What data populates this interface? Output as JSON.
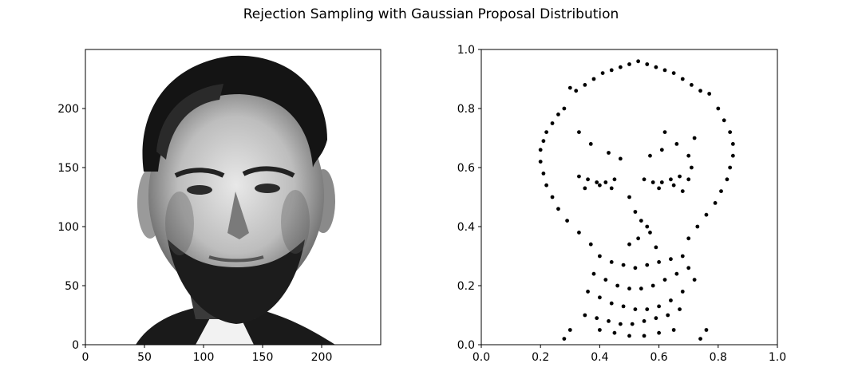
{
  "figure": {
    "title": "Rejection Sampling with Gaussian Proposal Distribution"
  },
  "chart_data": [
    {
      "type": "image",
      "image_description_hidden": false,
      "xlim": [
        0,
        250
      ],
      "ylim": [
        0,
        250
      ],
      "xticks": [
        0,
        50,
        100,
        150,
        200
      ],
      "yticks": [
        0,
        50,
        100,
        150,
        200
      ],
      "xlabel": "",
      "ylabel": "",
      "grid": false
    },
    {
      "type": "scatter",
      "xlim": [
        0.0,
        1.0
      ],
      "ylim": [
        0.0,
        1.0
      ],
      "xticks": [
        "0.0",
        "0.2",
        "0.4",
        "0.6",
        "0.8",
        "1.0"
      ],
      "yticks": [
        "0.0",
        "0.2",
        "0.4",
        "0.6",
        "0.8",
        "1.0"
      ],
      "xlabel": "",
      "ylabel": "",
      "grid": false,
      "marker_color": "#000000",
      "series": [
        {
          "x": [
            0.3,
            0.32,
            0.35,
            0.38,
            0.41,
            0.44,
            0.47,
            0.5,
            0.53,
            0.56,
            0.59,
            0.62,
            0.65,
            0.68,
            0.71,
            0.74,
            0.77,
            0.28,
            0.26,
            0.24,
            0.22,
            0.21,
            0.2,
            0.2,
            0.21,
            0.22,
            0.24,
            0.26,
            0.29,
            0.33,
            0.37,
            0.8,
            0.82,
            0.84,
            0.85,
            0.85,
            0.84,
            0.83,
            0.81,
            0.79,
            0.76,
            0.73,
            0.7,
            0.33,
            0.36,
            0.39,
            0.42,
            0.45,
            0.35,
            0.4,
            0.44,
            0.55,
            0.58,
            0.61,
            0.64,
            0.67,
            0.7,
            0.6,
            0.65,
            0.68,
            0.5,
            0.52,
            0.54,
            0.56,
            0.53,
            0.57,
            0.5,
            0.59,
            0.4,
            0.44,
            0.48,
            0.52,
            0.56,
            0.6,
            0.64,
            0.68,
            0.38,
            0.42,
            0.46,
            0.5,
            0.54,
            0.58,
            0.62,
            0.66,
            0.7,
            0.36,
            0.4,
            0.44,
            0.48,
            0.52,
            0.56,
            0.6,
            0.64,
            0.68,
            0.72,
            0.35,
            0.39,
            0.43,
            0.47,
            0.51,
            0.55,
            0.59,
            0.63,
            0.67,
            0.4,
            0.45,
            0.5,
            0.55,
            0.6,
            0.65,
            0.33,
            0.37,
            0.62,
            0.66,
            0.7,
            0.71,
            0.72,
            0.28,
            0.3,
            0.74,
            0.76,
            0.43,
            0.47,
            0.57,
            0.61
          ],
          "y": [
            0.87,
            0.86,
            0.88,
            0.9,
            0.92,
            0.93,
            0.94,
            0.95,
            0.96,
            0.95,
            0.94,
            0.93,
            0.92,
            0.9,
            0.88,
            0.86,
            0.85,
            0.8,
            0.78,
            0.75,
            0.72,
            0.69,
            0.66,
            0.62,
            0.58,
            0.54,
            0.5,
            0.46,
            0.42,
            0.38,
            0.34,
            0.8,
            0.76,
            0.72,
            0.68,
            0.64,
            0.6,
            0.56,
            0.52,
            0.48,
            0.44,
            0.4,
            0.36,
            0.57,
            0.56,
            0.55,
            0.55,
            0.56,
            0.53,
            0.54,
            0.53,
            0.56,
            0.55,
            0.55,
            0.56,
            0.57,
            0.56,
            0.53,
            0.54,
            0.52,
            0.5,
            0.45,
            0.42,
            0.4,
            0.36,
            0.38,
            0.34,
            0.33,
            0.3,
            0.28,
            0.27,
            0.26,
            0.27,
            0.28,
            0.29,
            0.3,
            0.24,
            0.22,
            0.2,
            0.19,
            0.19,
            0.2,
            0.22,
            0.24,
            0.26,
            0.18,
            0.16,
            0.14,
            0.13,
            0.12,
            0.12,
            0.13,
            0.15,
            0.18,
            0.22,
            0.1,
            0.09,
            0.08,
            0.07,
            0.07,
            0.08,
            0.09,
            0.1,
            0.12,
            0.05,
            0.04,
            0.03,
            0.03,
            0.04,
            0.05,
            0.72,
            0.68,
            0.72,
            0.68,
            0.64,
            0.6,
            0.7,
            0.02,
            0.05,
            0.02,
            0.05,
            0.65,
            0.63,
            0.64,
            0.66
          ]
        }
      ]
    }
  ]
}
